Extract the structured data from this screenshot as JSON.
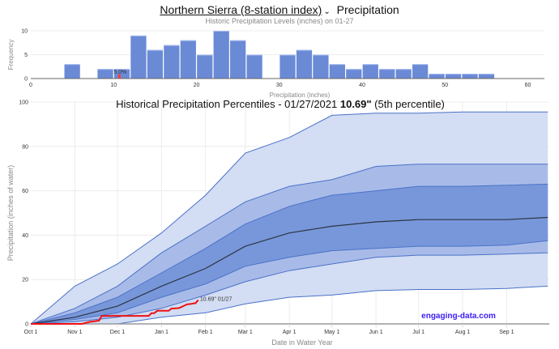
{
  "header": {
    "location": "Northern Sierra (8-station index)",
    "chevron_icon": "chevron-down-icon",
    "metric": "Precipitation",
    "subtitle": "Historic Precipitation Levels (inches) on 01-27"
  },
  "colors": {
    "bar": "#6a8ad6",
    "highlight": "#ff3b3b",
    "band_outer": "#d3ddf3",
    "band_mid": "#a8bbe8",
    "band_inner": "#7897da",
    "band_line": "#4a72c8",
    "median": "#2c3444",
    "current": "#ee1111",
    "brand": "#3a1df5"
  },
  "chart_data": [
    {
      "type": "bar",
      "title": "Historic Precipitation Levels (inches) on 01-27",
      "xlabel": "Precipitation (inches)",
      "ylabel": "Frequency",
      "xlim": [
        0,
        62
      ],
      "ylim": [
        0,
        10
      ],
      "xticks": [
        0,
        10,
        20,
        30,
        40,
        50,
        60
      ],
      "yticks": [
        0,
        5,
        10
      ],
      "bin_width": 2,
      "bins": [
        {
          "x0": 4,
          "count": 3
        },
        {
          "x0": 8,
          "count": 2
        },
        {
          "x0": 10,
          "count": 2
        },
        {
          "x0": 12,
          "count": 9
        },
        {
          "x0": 14,
          "count": 6
        },
        {
          "x0": 16,
          "count": 7
        },
        {
          "x0": 18,
          "count": 8
        },
        {
          "x0": 20,
          "count": 5
        },
        {
          "x0": 22,
          "count": 10
        },
        {
          "x0": 24,
          "count": 8
        },
        {
          "x0": 26,
          "count": 5
        },
        {
          "x0": 30,
          "count": 5
        },
        {
          "x0": 32,
          "count": 6
        },
        {
          "x0": 34,
          "count": 5
        },
        {
          "x0": 36,
          "count": 3
        },
        {
          "x0": 38,
          "count": 2
        },
        {
          "x0": 40,
          "count": 3
        },
        {
          "x0": 42,
          "count": 2
        },
        {
          "x0": 44,
          "count": 2
        },
        {
          "x0": 46,
          "count": 3
        },
        {
          "x0": 48,
          "count": 1
        },
        {
          "x0": 50,
          "count": 1
        },
        {
          "x0": 52,
          "count": 1
        },
        {
          "x0": 54,
          "count": 1
        }
      ],
      "marker": {
        "value": 10.69,
        "label": "5.0%"
      }
    },
    {
      "type": "area",
      "title_prefix": "Historical Precipitation Percentiles - 01/27/2021 ",
      "title_value": "10.69\"",
      "title_suffix": " (5th percentile)",
      "xlabel": "Date in Water Year",
      "ylabel": "Precipitation (inches of water)",
      "ylim": [
        0,
        100
      ],
      "yticks": [
        0,
        20,
        40,
        60,
        80,
        100
      ],
      "xdays_range": [
        0,
        365
      ],
      "xticks": [
        {
          "day": 0,
          "label": "Oct 1"
        },
        {
          "day": 31,
          "label": "Nov 1"
        },
        {
          "day": 61,
          "label": "Dec 1"
        },
        {
          "day": 92,
          "label": "Jan 1"
        },
        {
          "day": 123,
          "label": "Feb 1"
        },
        {
          "day": 151,
          "label": "Mar 1"
        },
        {
          "day": 182,
          "label": "Apr 1"
        },
        {
          "day": 212,
          "label": "May 1"
        },
        {
          "day": 243,
          "label": "Jun 1"
        },
        {
          "day": 273,
          "label": "Jul 1"
        },
        {
          "day": 304,
          "label": "Aug 1"
        },
        {
          "day": 335,
          "label": "Sep 1"
        }
      ],
      "x_days": [
        0,
        31,
        61,
        92,
        123,
        151,
        182,
        212,
        243,
        273,
        304,
        335,
        364
      ],
      "series": [
        {
          "name": "max",
          "values": [
            0,
            17,
            27,
            41,
            58,
            77,
            84,
            94,
            95,
            95,
            95.5,
            95.5,
            95.5
          ]
        },
        {
          "name": "p90",
          "values": [
            0,
            7,
            17,
            32,
            44,
            55,
            62,
            65,
            71,
            72,
            72,
            72,
            72
          ]
        },
        {
          "name": "p75",
          "values": [
            0,
            5,
            12,
            23,
            34,
            45,
            53,
            58,
            60,
            62,
            62,
            62.5,
            63
          ]
        },
        {
          "name": "median",
          "values": [
            0,
            3,
            8,
            17,
            25,
            35,
            41,
            44,
            46,
            47,
            47,
            47,
            48
          ]
        },
        {
          "name": "p25",
          "values": [
            0,
            2,
            5,
            12,
            18,
            26,
            30,
            33,
            34,
            35,
            35,
            35.5,
            37.5
          ]
        },
        {
          "name": "p10",
          "values": [
            0,
            1,
            3,
            7,
            13,
            19,
            24,
            27,
            30,
            31,
            31,
            31.5,
            32
          ]
        },
        {
          "name": "min",
          "values": [
            0,
            0,
            0,
            3,
            5,
            9,
            12,
            13,
            15,
            15.5,
            15.5,
            16,
            17
          ]
        }
      ],
      "current_year": {
        "days": [
          0,
          36,
          42,
          43,
          48,
          50,
          83,
          85,
          87,
          89,
          97,
          99,
          104,
          105,
          108,
          110,
          113,
          115,
          116,
          117,
          118
        ],
        "values": [
          0,
          0,
          1,
          1,
          1.5,
          3.6,
          3.6,
          4.8,
          4.8,
          5.9,
          5.9,
          6.9,
          7.1,
          7.3,
          8.2,
          8.8,
          9.0,
          9.3,
          9.3,
          10.2,
          10.69
        ],
        "label": "10.69\" 01/27"
      },
      "watermark": "engaging-data.com"
    }
  ]
}
